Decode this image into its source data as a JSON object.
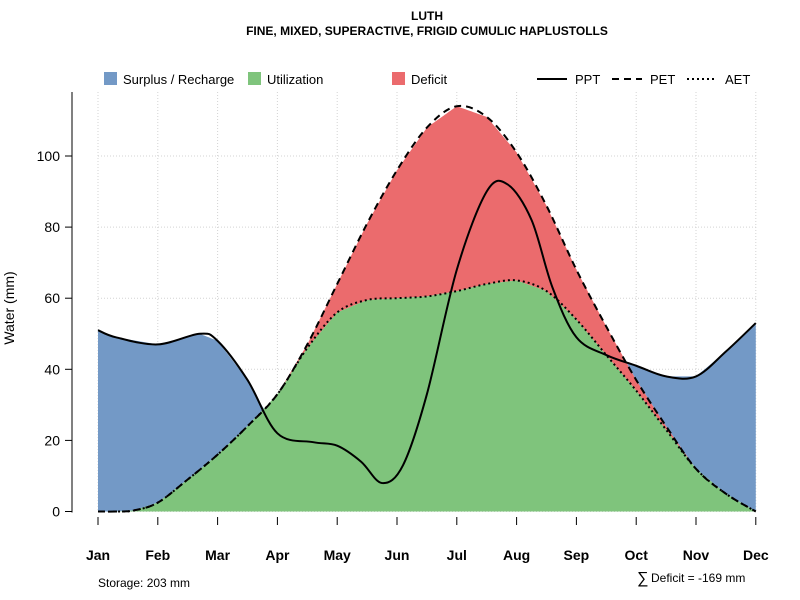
{
  "chart_data": {
    "type": "area",
    "title": "LUTH",
    "subtitle": "FINE, MIXED, SUPERACTIVE, FRIGID CUMULIC HAPLUSTOLLS",
    "ylabel": "Water (mm)",
    "xlabel": "",
    "categories": [
      "Jan",
      "Feb",
      "Mar",
      "Apr",
      "May",
      "Jun",
      "Jul",
      "Aug",
      "Sep",
      "Oct",
      "Nov",
      "Dec"
    ],
    "ylim": [
      0,
      118
    ],
    "yticks": [
      0,
      20,
      40,
      60,
      80,
      100
    ],
    "grid": true,
    "legend_placement": "top",
    "legend": {
      "fills": [
        {
          "label": "Surplus / Recharge",
          "color": "#7399C6"
        },
        {
          "label": "Utilization",
          "color": "#7FC47C"
        },
        {
          "label": "Deficit",
          "color": "#EB6B6D"
        }
      ],
      "lines": [
        {
          "label": "PPT",
          "style": "solid"
        },
        {
          "label": "PET",
          "style": "dashed"
        },
        {
          "label": "AET",
          "style": "dotted"
        }
      ]
    },
    "series": [
      {
        "name": "PPT",
        "style": "solid",
        "x": [
          0,
          0.3,
          1,
          1.7,
          2,
          2.5,
          3,
          3.6,
          4,
          4.4,
          4.75,
          5.1,
          5.5,
          6,
          6.5,
          6.85,
          7.25,
          7.6,
          8,
          8.5,
          9,
          9.5,
          10,
          10.5,
          11
        ],
        "values": [
          51,
          49,
          47,
          50,
          48,
          37,
          22,
          19.5,
          18.5,
          14,
          8,
          13,
          33,
          68,
          90,
          92,
          82,
          63,
          49,
          44,
          41,
          38,
          38,
          45,
          53
        ]
      },
      {
        "name": "PET",
        "style": "dashed",
        "x": [
          0,
          0.3,
          0.6,
          1,
          1.5,
          2,
          2.5,
          3,
          3.5,
          4,
          4.5,
          5,
          5.5,
          6,
          6.5,
          7,
          7.5,
          8,
          8.5,
          9,
          9.5,
          10,
          10.5,
          11
        ],
        "values": [
          0,
          0,
          0.3,
          2.5,
          9,
          16,
          24,
          33,
          47,
          64,
          81,
          96,
          108,
          114,
          111,
          101,
          86,
          68,
          52,
          37,
          24,
          12,
          5,
          0
        ]
      },
      {
        "name": "AET",
        "style": "dotted",
        "x": [
          0,
          0.3,
          0.6,
          1,
          1.5,
          2,
          2.5,
          3,
          3.5,
          4,
          4.5,
          5,
          5.5,
          6,
          6.5,
          7,
          7.5,
          8,
          8.5,
          9,
          9.5,
          10,
          10.5,
          11
        ],
        "values": [
          0,
          0,
          0.3,
          2.5,
          9,
          16,
          24,
          33,
          46,
          56,
          59.5,
          60,
          60.5,
          62,
          64,
          65,
          62,
          54,
          44,
          34,
          23,
          12,
          5,
          0
        ]
      }
    ],
    "annotations": {
      "storage": "Storage: 203 mm",
      "deficit_symbol": "∑",
      "deficit": "Deficit = -169 mm"
    }
  }
}
